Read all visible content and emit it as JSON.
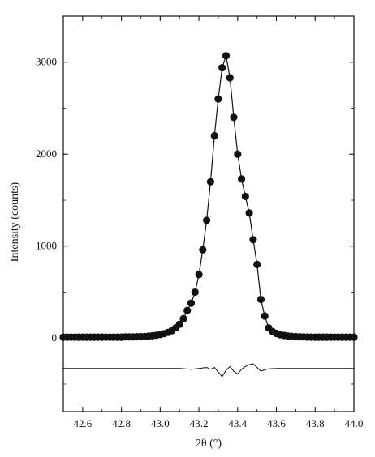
{
  "chart_data": {
    "type": "scatter",
    "title": "",
    "xlabel": "2θ (°)",
    "ylabel": "Intensity (counts)",
    "xlim": [
      42.5,
      44.0
    ],
    "ylim": [
      -800,
      3500
    ],
    "xticks": [
      42.6,
      42.8,
      43.0,
      43.2,
      43.4,
      43.6,
      43.8,
      44.0
    ],
    "xtick_labels": [
      "42.6",
      "42.8",
      "43.0",
      "43.2",
      "43.4",
      "43.6",
      "43.8",
      "44.0"
    ],
    "yticks": [
      0,
      1000,
      2000,
      3000
    ],
    "ytick_labels": [
      "0",
      "1000",
      "2000",
      "3000"
    ],
    "grid": false,
    "legend": "none",
    "series": [
      {
        "kind": "observed-points",
        "marker": "filled-circle",
        "x": [
          42.5,
          42.52,
          42.54,
          42.56,
          42.58,
          42.6,
          42.62,
          42.64,
          42.66,
          42.68,
          42.7,
          42.72,
          42.74,
          42.76,
          42.78,
          42.8,
          42.82,
          42.84,
          42.86,
          42.88,
          42.9,
          42.92,
          42.94,
          42.96,
          42.98,
          43.0,
          43.02,
          43.04,
          43.06,
          43.08,
          43.1,
          43.12,
          43.14,
          43.16,
          43.18,
          43.2,
          43.22,
          43.24,
          43.26,
          43.28,
          43.3,
          43.32,
          43.34,
          43.36,
          43.38,
          43.4,
          43.42,
          43.44,
          43.46,
          43.48,
          43.5,
          43.52,
          43.54,
          43.56,
          43.58,
          43.6,
          43.62,
          43.64,
          43.66,
          43.68,
          43.7,
          43.72,
          43.74,
          43.76,
          43.78,
          43.8,
          43.82,
          43.84,
          43.86,
          43.88,
          43.9,
          43.92,
          43.94,
          43.96,
          43.98,
          44.0
        ],
        "y": [
          10,
          10,
          10,
          10,
          10,
          10,
          10,
          10,
          10,
          10,
          10,
          10,
          10,
          10,
          10,
          10,
          12,
          12,
          12,
          14,
          15,
          17,
          20,
          25,
          30,
          38,
          48,
          62,
          80,
          110,
          150,
          210,
          300,
          380,
          500,
          690,
          960,
          1280,
          1700,
          2200,
          2600,
          2940,
          3070,
          2830,
          2400,
          2000,
          1730,
          1540,
          1360,
          1070,
          800,
          420,
          240,
          110,
          70,
          50,
          35,
          28,
          22,
          18,
          15,
          13,
          12,
          11,
          10,
          10,
          10,
          10,
          10,
          10,
          10,
          10,
          10,
          10,
          10,
          10
        ]
      },
      {
        "kind": "calculated-line",
        "x": [
          42.5,
          42.52,
          42.54,
          42.56,
          42.58,
          42.6,
          42.62,
          42.64,
          42.66,
          42.68,
          42.7,
          42.72,
          42.74,
          42.76,
          42.78,
          42.8,
          42.82,
          42.84,
          42.86,
          42.88,
          42.9,
          42.92,
          42.94,
          42.96,
          42.98,
          43.0,
          43.02,
          43.04,
          43.06,
          43.08,
          43.1,
          43.12,
          43.14,
          43.16,
          43.18,
          43.2,
          43.22,
          43.24,
          43.26,
          43.28,
          43.3,
          43.32,
          43.34,
          43.36,
          43.38,
          43.4,
          43.42,
          43.44,
          43.46,
          43.48,
          43.5,
          43.52,
          43.54,
          43.56,
          43.58,
          43.6,
          43.62,
          43.64,
          43.66,
          43.68,
          43.7,
          43.72,
          43.74,
          43.76,
          43.78,
          43.8,
          43.82,
          43.84,
          43.86,
          43.88,
          43.9,
          43.92,
          43.94,
          43.96,
          43.98,
          44.0
        ],
        "y": [
          10,
          10,
          10,
          10,
          10,
          10,
          10,
          10,
          10,
          10,
          10,
          10,
          10,
          10,
          10,
          10,
          12,
          12,
          12,
          14,
          15,
          17,
          20,
          25,
          30,
          38,
          48,
          62,
          80,
          110,
          150,
          210,
          300,
          380,
          500,
          690,
          960,
          1280,
          1700,
          2200,
          2600,
          2940,
          3070,
          2830,
          2400,
          2000,
          1730,
          1540,
          1360,
          1070,
          800,
          420,
          240,
          110,
          70,
          50,
          35,
          28,
          22,
          18,
          15,
          13,
          12,
          11,
          10,
          10,
          10,
          10,
          10,
          10,
          10,
          10,
          10,
          10,
          10,
          10
        ]
      },
      {
        "kind": "difference-curve",
        "x": [
          42.5,
          42.9,
          43.0,
          43.1,
          43.16,
          43.2,
          43.24,
          43.26,
          43.28,
          43.3,
          43.32,
          43.34,
          43.36,
          43.38,
          43.4,
          43.42,
          43.44,
          43.46,
          43.48,
          43.5,
          43.52,
          43.54,
          43.56,
          43.6,
          43.7,
          44.0
        ],
        "y": [
          -330,
          -330,
          -330,
          -330,
          -340,
          -330,
          -320,
          -340,
          -320,
          -370,
          -420,
          -350,
          -310,
          -360,
          -390,
          -340,
          -310,
          -290,
          -280,
          -320,
          -360,
          -345,
          -335,
          -330,
          -330,
          -330
        ]
      }
    ]
  }
}
